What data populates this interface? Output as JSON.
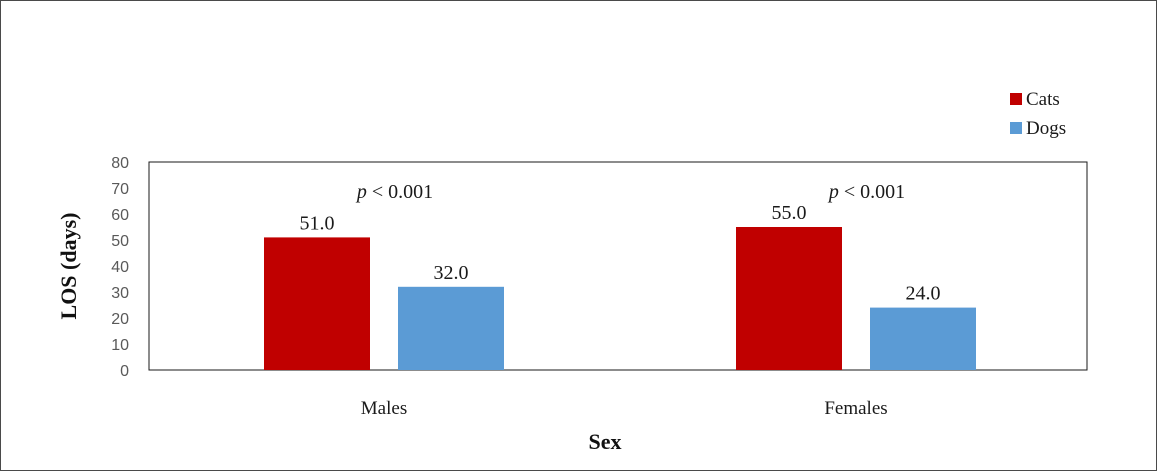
{
  "chart_data": {
    "type": "bar",
    "categories": [
      "Males",
      "Females"
    ],
    "series": [
      {
        "name": "Cats",
        "values": [
          51.0,
          55.0
        ],
        "color": "#c00000"
      },
      {
        "name": "Dogs",
        "values": [
          32.0,
          24.0
        ],
        "color": "#5b9bd5"
      }
    ],
    "data_labels": [
      [
        "51.0",
        "55.0"
      ],
      [
        "32.0",
        "24.0"
      ]
    ],
    "annotations": [
      {
        "italic": "p",
        "rest": " < 0.001"
      },
      {
        "italic": "p",
        "rest": " < 0.001"
      }
    ],
    "xlabel": "Sex",
    "ylabel": "LOS (days)",
    "ylim": [
      0,
      80
    ],
    "yticks": [
      "0",
      "10",
      "20",
      "30",
      "40",
      "50",
      "60",
      "70",
      "80"
    ],
    "grid": false,
    "legend_position": "top-right"
  }
}
